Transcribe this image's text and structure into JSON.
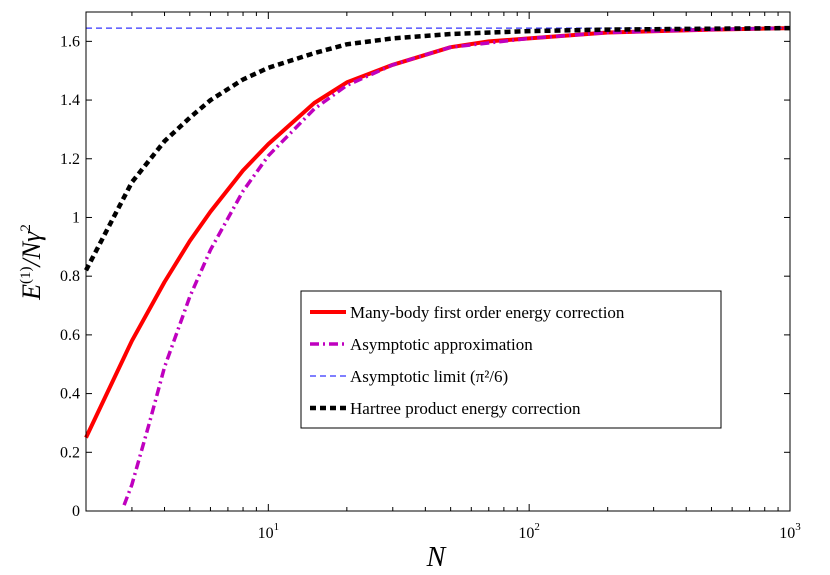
{
  "chart_data": {
    "type": "line",
    "title": "",
    "xlabel": "N",
    "ylabel_main": "E",
    "ylabel_sup": "(1)",
    "ylabel_rest": "/Nγ",
    "ylabel_sup2": "2",
    "xscale": "log",
    "xlim": [
      2,
      1000
    ],
    "ylim": [
      0,
      1.7
    ],
    "grid": false,
    "legend_position": "center-right",
    "x_ticks": [
      {
        "value": 10,
        "base": "10",
        "exp": "1"
      },
      {
        "value": 100,
        "base": "10",
        "exp": "2"
      },
      {
        "value": 1000,
        "base": "10",
        "exp": "3"
      }
    ],
    "y_ticks": [
      {
        "value": 0,
        "label": "0"
      },
      {
        "value": 0.2,
        "label": "0.2"
      },
      {
        "value": 0.4,
        "label": "0.4"
      },
      {
        "value": 0.6,
        "label": "0.6"
      },
      {
        "value": 0.8,
        "label": "0.8"
      },
      {
        "value": 1.0,
        "label": "1"
      },
      {
        "value": 1.2,
        "label": "1.2"
      },
      {
        "value": 1.4,
        "label": "1.4"
      },
      {
        "value": 1.6,
        "label": "1.6"
      }
    ],
    "series": [
      {
        "name": "Many-body first order energy correction",
        "color": "#ff0000",
        "style": "solid",
        "x": [
          2,
          3,
          4,
          5,
          6,
          8,
          10,
          15,
          20,
          30,
          50,
          70,
          100,
          200,
          500,
          1000
        ],
        "y": [
          0.25,
          0.58,
          0.78,
          0.92,
          1.02,
          1.16,
          1.25,
          1.39,
          1.46,
          1.52,
          1.58,
          1.6,
          1.61,
          1.63,
          1.64,
          1.645
        ]
      },
      {
        "name": "Asymptotic approximation",
        "color": "#bf00bf",
        "style": "dashdot",
        "x": [
          2.8,
          3,
          3.5,
          4,
          5,
          6,
          8,
          10,
          15,
          20,
          30,
          50,
          100,
          200,
          500,
          1000
        ],
        "y": [
          0.02,
          0.09,
          0.3,
          0.49,
          0.73,
          0.89,
          1.09,
          1.21,
          1.37,
          1.45,
          1.52,
          1.58,
          1.61,
          1.63,
          1.64,
          1.645
        ]
      },
      {
        "name": "Asymptotic limit (π²/6)",
        "color": "#3333ff",
        "style": "dashed",
        "x": [
          2,
          1000
        ],
        "y": [
          1.645,
          1.645
        ]
      },
      {
        "name": "Hartree product energy correction",
        "color": "#000000",
        "style": "dotted",
        "x": [
          2,
          3,
          4,
          5,
          6,
          8,
          10,
          15,
          20,
          30,
          50,
          100,
          200,
          500,
          1000
        ],
        "y": [
          0.82,
          1.12,
          1.26,
          1.34,
          1.4,
          1.47,
          1.51,
          1.56,
          1.59,
          1.61,
          1.625,
          1.635,
          1.64,
          1.643,
          1.645
        ]
      }
    ],
    "legend": [
      {
        "label": "Many-body first order energy correction",
        "color": "#ff0000",
        "style": "solid"
      },
      {
        "label": "Asymptotic approximation",
        "color": "#bf00bf",
        "style": "dashdot"
      },
      {
        "label": "Asymptotic limit (π²/6)",
        "color": "#3333ff",
        "style": "dashed"
      },
      {
        "label": "Hartree product energy correction",
        "color": "#000000",
        "style": "dotted"
      }
    ]
  }
}
